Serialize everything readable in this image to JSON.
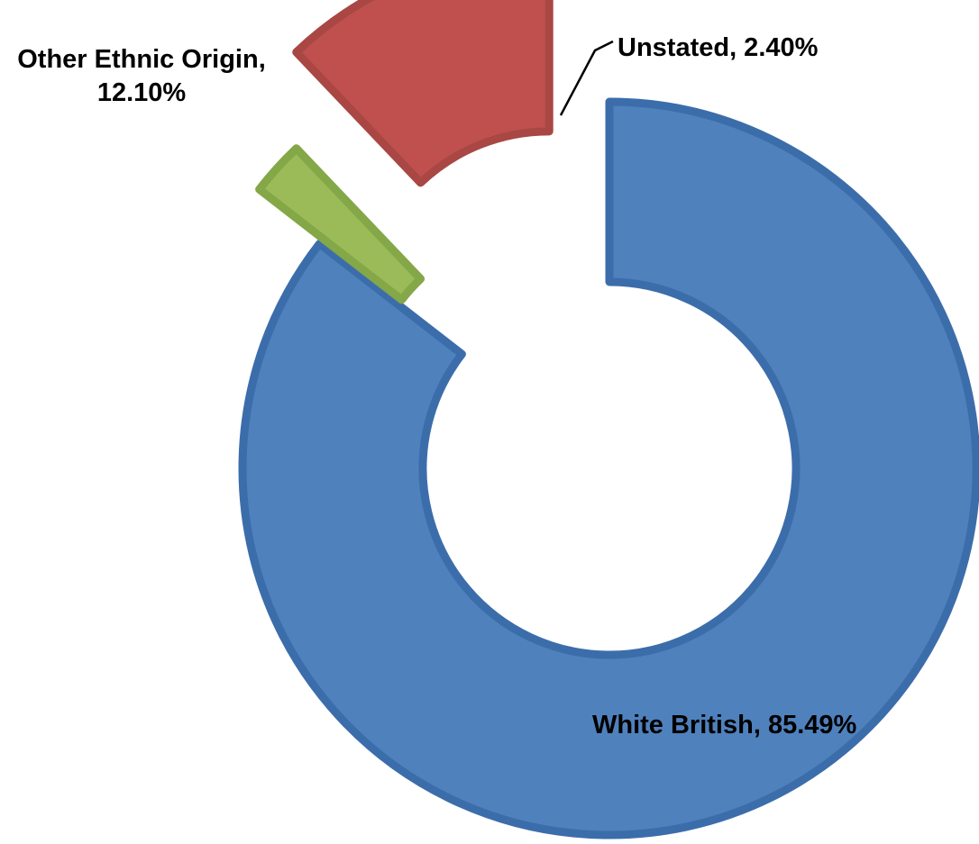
{
  "chart_data": {
    "type": "pie",
    "variant": "doughnut",
    "exploded": true,
    "legend": "none",
    "slices": [
      {
        "name": "White British",
        "value": 85.49,
        "label": "White British, 85.49%",
        "color": "#4F81BD",
        "stroke": "#3C6DAB"
      },
      {
        "name": "Unstated",
        "value": 2.4,
        "label": "Unstated, 2.40%",
        "color": "#9BBB59",
        "stroke": "#84A747"
      },
      {
        "name": "Other Ethnic Origin",
        "value": 12.1,
        "label_lines": [
          "Other Ethnic Origin,",
          "12.10%"
        ],
        "color": "#C0504D",
        "stroke": "#A94744"
      }
    ]
  }
}
